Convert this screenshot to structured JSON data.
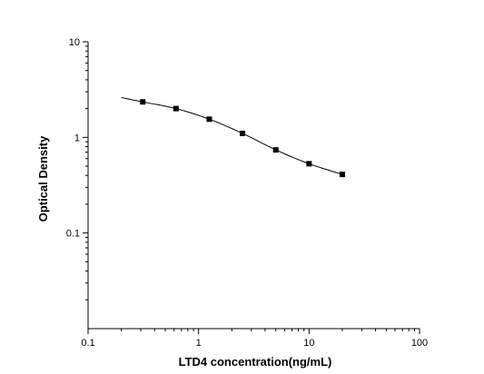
{
  "chart_data": {
    "type": "scatter",
    "title": "",
    "xlabel": "LTD4 concentration(ng/mL)",
    "ylabel": "Optical Density",
    "xscale": "log",
    "yscale": "log",
    "xlim": [
      0.1,
      100
    ],
    "ylim": [
      0.01,
      10
    ],
    "x_ticks": [
      0.1,
      1,
      10,
      100
    ],
    "x_tick_labels": [
      "0.1",
      "1",
      "10",
      "100"
    ],
    "y_ticks": [
      0.1,
      1,
      10
    ],
    "y_tick_labels": [
      "0.1",
      "1",
      "10"
    ],
    "grid": false,
    "legend": "none",
    "series": [
      {
        "x": [
          0.3125,
          0.625,
          1.25,
          2.5,
          5,
          10,
          20
        ],
        "values": [
          2.35,
          2.0,
          1.55,
          1.1,
          0.74,
          0.53,
          0.41
        ],
        "marker": "square",
        "color": "#000000"
      }
    ],
    "fit_curve": {
      "type": "4PL",
      "x_range": [
        0.2,
        20
      ],
      "color": "#000000"
    }
  }
}
